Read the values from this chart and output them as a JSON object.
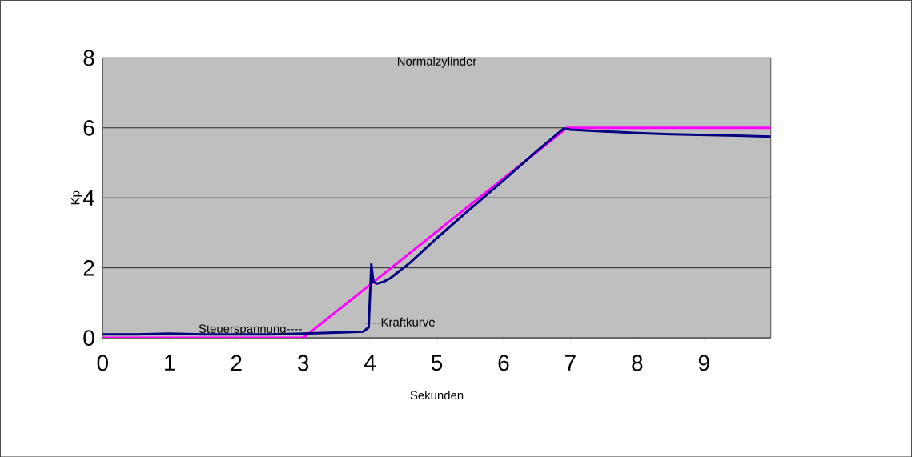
{
  "chart_data": {
    "type": "line",
    "title": "Normalzylinder",
    "xlabel": "Sekunden",
    "ylabel": "Kp",
    "xlim": [
      0,
      10
    ],
    "xticks": [
      0,
      1,
      2,
      3,
      4,
      5,
      6,
      7,
      8,
      9
    ],
    "ylim": [
      0,
      8
    ],
    "yticks": [
      0,
      2,
      4,
      6,
      8
    ],
    "grid": "y",
    "legend": false,
    "series": [
      {
        "name": "Steuerspannung----",
        "color": "#ff00ff",
        "x": [
          0,
          3,
          6.95,
          10
        ],
        "values": [
          0,
          0,
          6,
          6
        ]
      },
      {
        "name": "----Kraftkurve",
        "color": "#000080",
        "x": [
          0,
          0.5,
          1,
          1.5,
          2,
          2.5,
          3,
          3.5,
          3.9,
          3.98,
          4.02,
          4.05,
          4.1,
          4.2,
          4.3,
          4.4,
          4.6,
          5,
          5.5,
          6,
          6.5,
          6.9,
          7.0,
          7.5,
          8,
          8.5,
          9,
          9.5,
          10
        ],
        "values": [
          0.1,
          0.1,
          0.12,
          0.1,
          0.1,
          0.1,
          0.12,
          0.15,
          0.18,
          0.3,
          2.1,
          1.6,
          1.55,
          1.6,
          1.7,
          1.85,
          2.15,
          2.85,
          3.68,
          4.5,
          5.34,
          5.98,
          5.95,
          5.9,
          5.85,
          5.82,
          5.8,
          5.78,
          5.75
        ]
      }
    ]
  }
}
